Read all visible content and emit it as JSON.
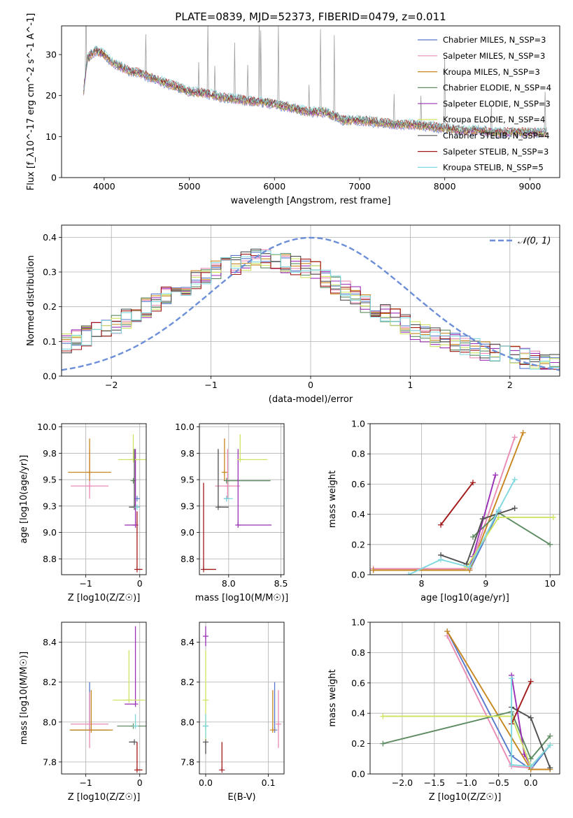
{
  "figure": {
    "title": "PLATE=0839, MJD=52373, FIBERID=0479, z=0.011"
  },
  "palette": {
    "grid": "#b0b0b0",
    "axes": "#000000",
    "obs": "#9e9e9e",
    "gauss": "#6c8fd8"
  },
  "chart_data": [
    {
      "id": "spectrum",
      "type": "line",
      "xlabel": "wavelength [Angstrom, rest frame]",
      "ylabel": "Flux [f_λ10^-17 erg cm^-2 s^-1 A^-1]",
      "xlim": [
        3500,
        9350
      ],
      "ylim": [
        0,
        37
      ],
      "xticks": [
        4000,
        5000,
        6000,
        7000,
        8000,
        9000
      ],
      "yticks": [
        0,
        10,
        20,
        30
      ],
      "grid": false,
      "legend_position": "top-right",
      "observed_continuum": {
        "x": [
          3760,
          3800,
          3900,
          4000,
          4100,
          4200,
          4300,
          4400,
          4600,
          4800,
          5000,
          5200,
          5400,
          5600,
          5800,
          6000,
          6200,
          6400,
          6600,
          6800,
          7000,
          7200,
          7400,
          7600,
          7800,
          8000,
          8200,
          8400,
          8600,
          8800,
          9000,
          9200
        ],
        "y": [
          21,
          29,
          31,
          30,
          28,
          27,
          26,
          25.5,
          24,
          22.5,
          21,
          20.5,
          19.5,
          19,
          18.5,
          18,
          17,
          16,
          16,
          14,
          14,
          13.5,
          13,
          13,
          12.5,
          12,
          11.5,
          11.5,
          11,
          11,
          11,
          11
        ]
      },
      "series": [
        {
          "name": "Chabrier MILES, N_SSP=3",
          "color": "#5577cc"
        },
        {
          "name": "Salpeter MILES, N_SSP=3",
          "color": "#e98bb5"
        },
        {
          "name": "Kroupa MILES, N_SSP=3",
          "color": "#c8861f"
        },
        {
          "name": "Chabrier ELODIE, N_SSP=4",
          "color": "#5e8c62"
        },
        {
          "name": "Salpeter ELODIE, N_SSP=3",
          "color": "#9b30b6"
        },
        {
          "name": "Kroupa ELODIE, N_SSP=4",
          "color": "#cfe463"
        },
        {
          "name": "Chabrier STELIB, N_SSP=4",
          "color": "#505050"
        },
        {
          "name": "Salpeter STELIB, N_SSP=3",
          "color": "#a11919"
        },
        {
          "name": "Kroupa STELIB, N_SSP=5",
          "color": "#7fd8df"
        }
      ]
    },
    {
      "id": "residuals",
      "type": "line",
      "xlabel": "(data-model)/error",
      "ylabel": "Normed distribution",
      "xlim": [
        -2.5,
        2.5
      ],
      "ylim": [
        0,
        0.435
      ],
      "xticks": [
        -2,
        -1,
        0,
        1,
        2
      ],
      "yticks": [
        0.0,
        0.1,
        0.2,
        0.3,
        0.4
      ],
      "grid": true,
      "legend": "𝒩(0, 1)",
      "legend_position": "top-right",
      "gaussian": {
        "mu": 0,
        "sigma": 1
      },
      "bin_width": 0.1,
      "hist_shape": {
        "x": [
          -2.5,
          -2.0,
          -1.5,
          -1.0,
          -0.5,
          0.0,
          0.5,
          1.0,
          1.5,
          2.0,
          2.5
        ],
        "y": [
          0.09,
          0.14,
          0.22,
          0.3,
          0.34,
          0.31,
          0.22,
          0.14,
          0.09,
          0.06,
          0.03
        ]
      }
    },
    {
      "id": "age_vs_z",
      "type": "scatter",
      "xlabel": "Z [log10(Z/Z☉)]",
      "ylabel": "age  [log10(age/yr)]",
      "xlim": [
        -1.45,
        0.12
      ],
      "ylim": [
        8.6,
        10.03
      ],
      "xticks": [
        -1,
        0
      ],
      "yticks": [
        8.75,
        9.0,
        9.25,
        9.5,
        9.75,
        10.0
      ],
      "grid": true,
      "points": [
        {
          "s": 0,
          "x": -0.05,
          "y": 9.32,
          "xerr": [
            0.0,
            0.0
          ],
          "yerr": [
            0.0,
            0.0
          ]
        },
        {
          "s": 1,
          "x": -0.93,
          "y": 9.44,
          "xerr": [
            0.35,
            0.35
          ],
          "yerr": [
            0.12,
            0.35
          ]
        },
        {
          "s": 2,
          "x": -0.93,
          "y": 9.57,
          "xerr": [
            0.4,
            0.4
          ],
          "yerr": [
            0.08,
            0.32
          ]
        },
        {
          "s": 3,
          "x": -0.12,
          "y": 9.49,
          "xerr": [
            0.0,
            0.0
          ],
          "yerr": [
            0.0,
            0.0
          ]
        },
        {
          "s": 4,
          "x": -0.08,
          "y": 9.07,
          "xerr": [
            0.2,
            0.0
          ],
          "yerr": [
            0.0,
            0.72
          ]
        },
        {
          "s": 5,
          "x": -0.12,
          "y": 9.69,
          "xerr": [
            0.28,
            0.28
          ],
          "yerr": [
            0.0,
            0.24
          ]
        },
        {
          "s": 6,
          "x": -0.1,
          "y": 9.24,
          "xerr": [
            0.1,
            0.1
          ],
          "yerr": [
            0.0,
            0.55
          ]
        },
        {
          "s": 7,
          "x": -0.05,
          "y": 8.65,
          "xerr": [
            0.0,
            0.1
          ],
          "yerr": [
            0.0,
            0.55
          ]
        },
        {
          "s": 8,
          "x": -0.05,
          "y": 9.24,
          "xerr": [
            0.0,
            0.0
          ],
          "yerr": [
            0.0,
            0.0
          ]
        }
      ]
    },
    {
      "id": "age_vs_mass",
      "type": "scatter",
      "xlabel": "mass [log10(M/M☉)]",
      "ylabel": "",
      "xlim": [
        7.72,
        8.53
      ],
      "ylim": [
        8.6,
        10.03
      ],
      "xticks": [
        8.0,
        8.5
      ],
      "yticks": [
        8.75,
        9.0,
        9.25,
        9.5,
        9.75,
        10.0
      ],
      "grid": true,
      "points": [
        {
          "s": 0,
          "x": 7.98,
          "y": 9.32,
          "xerr": [
            0.0,
            0.0
          ],
          "yerr": [
            0.0,
            0.0
          ]
        },
        {
          "s": 1,
          "x": 7.99,
          "y": 9.44,
          "xerr": [
            0.12,
            0.12
          ],
          "yerr": [
            0.12,
            0.35
          ]
        },
        {
          "s": 2,
          "x": 7.96,
          "y": 9.57,
          "xerr": [
            0.0,
            0.0
          ],
          "yerr": [
            0.08,
            0.32
          ]
        },
        {
          "s": 3,
          "x": 7.98,
          "y": 9.49,
          "xerr": [
            0.0,
            0.42
          ],
          "yerr": [
            0.0,
            0.0
          ]
        },
        {
          "s": 4,
          "x": 8.09,
          "y": 9.07,
          "xerr": [
            0.0,
            0.32
          ],
          "yerr": [
            0.0,
            0.72
          ]
        },
        {
          "s": 5,
          "x": 8.11,
          "y": 9.69,
          "xerr": [
            0.0,
            0.26
          ],
          "yerr": [
            0.0,
            0.24
          ]
        },
        {
          "s": 6,
          "x": 7.9,
          "y": 9.24,
          "xerr": [
            0.0,
            0.1
          ],
          "yerr": [
            0.0,
            0.55
          ]
        },
        {
          "s": 7,
          "x": 7.76,
          "y": 8.65,
          "xerr": [
            0.0,
            0.12
          ],
          "yerr": [
            0.0,
            0.82
          ]
        },
        {
          "s": 8,
          "x": 7.98,
          "y": 9.32,
          "xerr": [
            0.0,
            0.06
          ],
          "yerr": [
            0.0,
            0.0
          ]
        }
      ]
    },
    {
      "id": "mass_weight_vs_age",
      "type": "line",
      "xlabel": "age  [log10(age/yr)]",
      "ylabel": "mass weight",
      "xlim": [
        7.2,
        10.15
      ],
      "ylim": [
        0,
        1.0
      ],
      "xticks": [
        8,
        9,
        10
      ],
      "yticks": [
        0.0,
        0.2,
        0.4,
        0.6,
        0.8,
        1.0
      ],
      "grid": true,
      "series": [
        {
          "s": 0,
          "x": [
            7.25,
            8.75,
            9.2
          ],
          "y": [
            0.03,
            0.03,
            0.42
          ]
        },
        {
          "s": 1,
          "x": [
            7.25,
            8.75,
            9.45
          ],
          "y": [
            0.04,
            0.04,
            0.91
          ]
        },
        {
          "s": 2,
          "x": [
            7.25,
            8.75,
            9.58
          ],
          "y": [
            0.03,
            0.03,
            0.94
          ]
        },
        {
          "s": 3,
          "x": [
            8.8,
            9.2,
            10.0
          ],
          "y": [
            0.25,
            0.41,
            0.2
          ]
        },
        {
          "s": 4,
          "x": [
            8.75,
            8.8,
            9.15
          ],
          "y": [
            0.05,
            0.12,
            0.66
          ]
        },
        {
          "s": 5,
          "x": [
            8.7,
            9.2,
            10.05
          ],
          "y": [
            0.05,
            0.38,
            0.38
          ]
        },
        {
          "s": 6,
          "x": [
            8.3,
            8.7,
            8.95,
            9.45
          ],
          "y": [
            0.13,
            0.07,
            0.37,
            0.44
          ]
        },
        {
          "s": 7,
          "x": [
            8.3,
            8.8
          ],
          "y": [
            0.33,
            0.61
          ]
        },
        {
          "s": 8,
          "x": [
            7.8,
            8.3,
            8.75,
            9.2,
            9.45
          ],
          "y": [
            0.0,
            0.1,
            0.05,
            0.43,
            0.63
          ]
        }
      ]
    },
    {
      "id": "mass_vs_z",
      "type": "scatter",
      "xlabel": "Z [log10(Z/Z☉)]",
      "ylabel": "mass [log10(M/M☉)]",
      "xlim": [
        -1.45,
        0.12
      ],
      "ylim": [
        7.74,
        8.5
      ],
      "xticks": [
        -1,
        0
      ],
      "yticks": [
        7.8,
        8.0,
        8.2,
        8.4
      ],
      "grid": true,
      "points": [
        {
          "s": 0,
          "x": -0.93,
          "y": 7.96,
          "xerr": [
            0.35,
            0.35
          ],
          "yerr": [
            0.0,
            0.24
          ]
        },
        {
          "s": 1,
          "x": -0.93,
          "y": 7.99,
          "xerr": [
            0.35,
            0.35
          ],
          "yerr": [
            0.12,
            0.16
          ]
        },
        {
          "s": 2,
          "x": -0.9,
          "y": 7.96,
          "xerr": [
            0.4,
            0.4
          ],
          "yerr": [
            0.0,
            0.2
          ]
        },
        {
          "s": 3,
          "x": -0.12,
          "y": 7.98,
          "xerr": [
            0.3,
            0.3
          ],
          "yerr": [
            0.0,
            0.0
          ]
        },
        {
          "s": 4,
          "x": -0.08,
          "y": 8.09,
          "xerr": [
            0.2,
            0.0
          ],
          "yerr": [
            0.0,
            0.39
          ]
        },
        {
          "s": 5,
          "x": -0.2,
          "y": 8.11,
          "xerr": [
            0.3,
            0.3
          ],
          "yerr": [
            0.0,
            0.25
          ]
        },
        {
          "s": 6,
          "x": -0.1,
          "y": 7.9,
          "xerr": [
            0.1,
            0.0
          ],
          "yerr": [
            0.0,
            0.0
          ]
        },
        {
          "s": 7,
          "x": -0.05,
          "y": 7.76,
          "xerr": [
            0.0,
            0.1
          ],
          "yerr": [
            0.0,
            0.14
          ]
        },
        {
          "s": 8,
          "x": -0.08,
          "y": 7.98,
          "xerr": [
            0.0,
            0.0
          ],
          "yerr": [
            0.0,
            0.06
          ]
        }
      ]
    },
    {
      "id": "mass_vs_ebv",
      "type": "scatter",
      "xlabel": "E(B-V)",
      "ylabel": "",
      "xlim": [
        -0.01,
        0.125
      ],
      "ylim": [
        7.74,
        8.5
      ],
      "xticks": [
        0.0,
        0.1
      ],
      "yticks": [
        7.8,
        8.0,
        8.2,
        8.4
      ],
      "grid": true,
      "points": [
        {
          "s": 0,
          "x": 0.11,
          "y": 7.96,
          "xerr": [
            0.0,
            0.0
          ],
          "yerr": [
            0.0,
            0.24
          ]
        },
        {
          "s": 1,
          "x": 0.116,
          "y": 7.99,
          "xerr": [
            0.0,
            0.0
          ],
          "yerr": [
            0.12,
            0.17
          ]
        },
        {
          "s": 2,
          "x": 0.107,
          "y": 7.96,
          "xerr": [
            0.0,
            0.0
          ],
          "yerr": [
            0.0,
            0.2
          ]
        },
        {
          "s": 3,
          "x": 0.0,
          "y": 7.98,
          "xerr": [
            0.0,
            0.0
          ],
          "yerr": [
            0.0,
            0.0
          ]
        },
        {
          "s": 4,
          "x": 0.0,
          "y": 8.43,
          "xerr": [
            0.0,
            0.0
          ],
          "yerr": [
            0.05,
            0.05
          ]
        },
        {
          "s": 5,
          "x": 0.0,
          "y": 8.11,
          "xerr": [
            0.0,
            0.0
          ],
          "yerr": [
            0.2,
            0.25
          ]
        },
        {
          "s": 6,
          "x": 0.0,
          "y": 7.9,
          "xerr": [
            0.0,
            0.0
          ],
          "yerr": [
            0.06,
            0.0
          ]
        },
        {
          "s": 7,
          "x": 0.026,
          "y": 7.76,
          "xerr": [
            0.0,
            0.0
          ],
          "yerr": [
            0.0,
            0.14
          ]
        },
        {
          "s": 8,
          "x": 0.0,
          "y": 7.98,
          "xerr": [
            0.0,
            0.0
          ],
          "yerr": [
            0.06,
            0.06
          ]
        }
      ]
    },
    {
      "id": "mass_weight_vs_z",
      "type": "line",
      "xlabel": "Z [log10(Z/Z☉)]",
      "ylabel": "mass weight",
      "xlim": [
        -2.5,
        0.45
      ],
      "ylim": [
        0,
        1.0
      ],
      "xticks": [
        -2.0,
        -1.5,
        -1.0,
        -0.5,
        0.0
      ],
      "yticks": [
        0.0,
        0.2,
        0.4,
        0.6,
        0.8,
        1.0
      ],
      "grid": true,
      "series": [
        {
          "s": 0,
          "x": [
            -1.3,
            -0.3,
            0.0,
            0.3
          ],
          "y": [
            0.94,
            0.12,
            0.03,
            0.19
          ]
        },
        {
          "s": 1,
          "x": [
            -1.3,
            -0.3,
            0.0
          ],
          "y": [
            0.91,
            0.05,
            0.04
          ]
        },
        {
          "s": 2,
          "x": [
            -1.3,
            0.0,
            0.3
          ],
          "y": [
            0.94,
            0.03,
            0.03
          ]
        },
        {
          "s": 3,
          "x": [
            -2.3,
            -0.3,
            0.0,
            0.3
          ],
          "y": [
            0.2,
            0.41,
            0.1,
            0.25
          ]
        },
        {
          "s": 4,
          "x": [
            -0.3,
            -0.1,
            0.0
          ],
          "y": [
            0.65,
            0.13,
            0.05
          ]
        },
        {
          "s": 5,
          "x": [
            -2.3,
            -0.3,
            0.0,
            0.3
          ],
          "y": [
            0.38,
            0.38,
            0.05,
            0.19
          ]
        },
        {
          "s": 6,
          "x": [
            -0.3,
            0.0,
            0.3
          ],
          "y": [
            0.44,
            0.37,
            0.04
          ]
        },
        {
          "s": 7,
          "x": [
            -0.3,
            0.0
          ],
          "y": [
            0.33,
            0.61
          ]
        },
        {
          "s": 8,
          "x": [
            -0.3,
            -0.3,
            0.0,
            0.3
          ],
          "y": [
            0.63,
            0.06,
            0.05,
            0.19
          ]
        }
      ]
    }
  ]
}
